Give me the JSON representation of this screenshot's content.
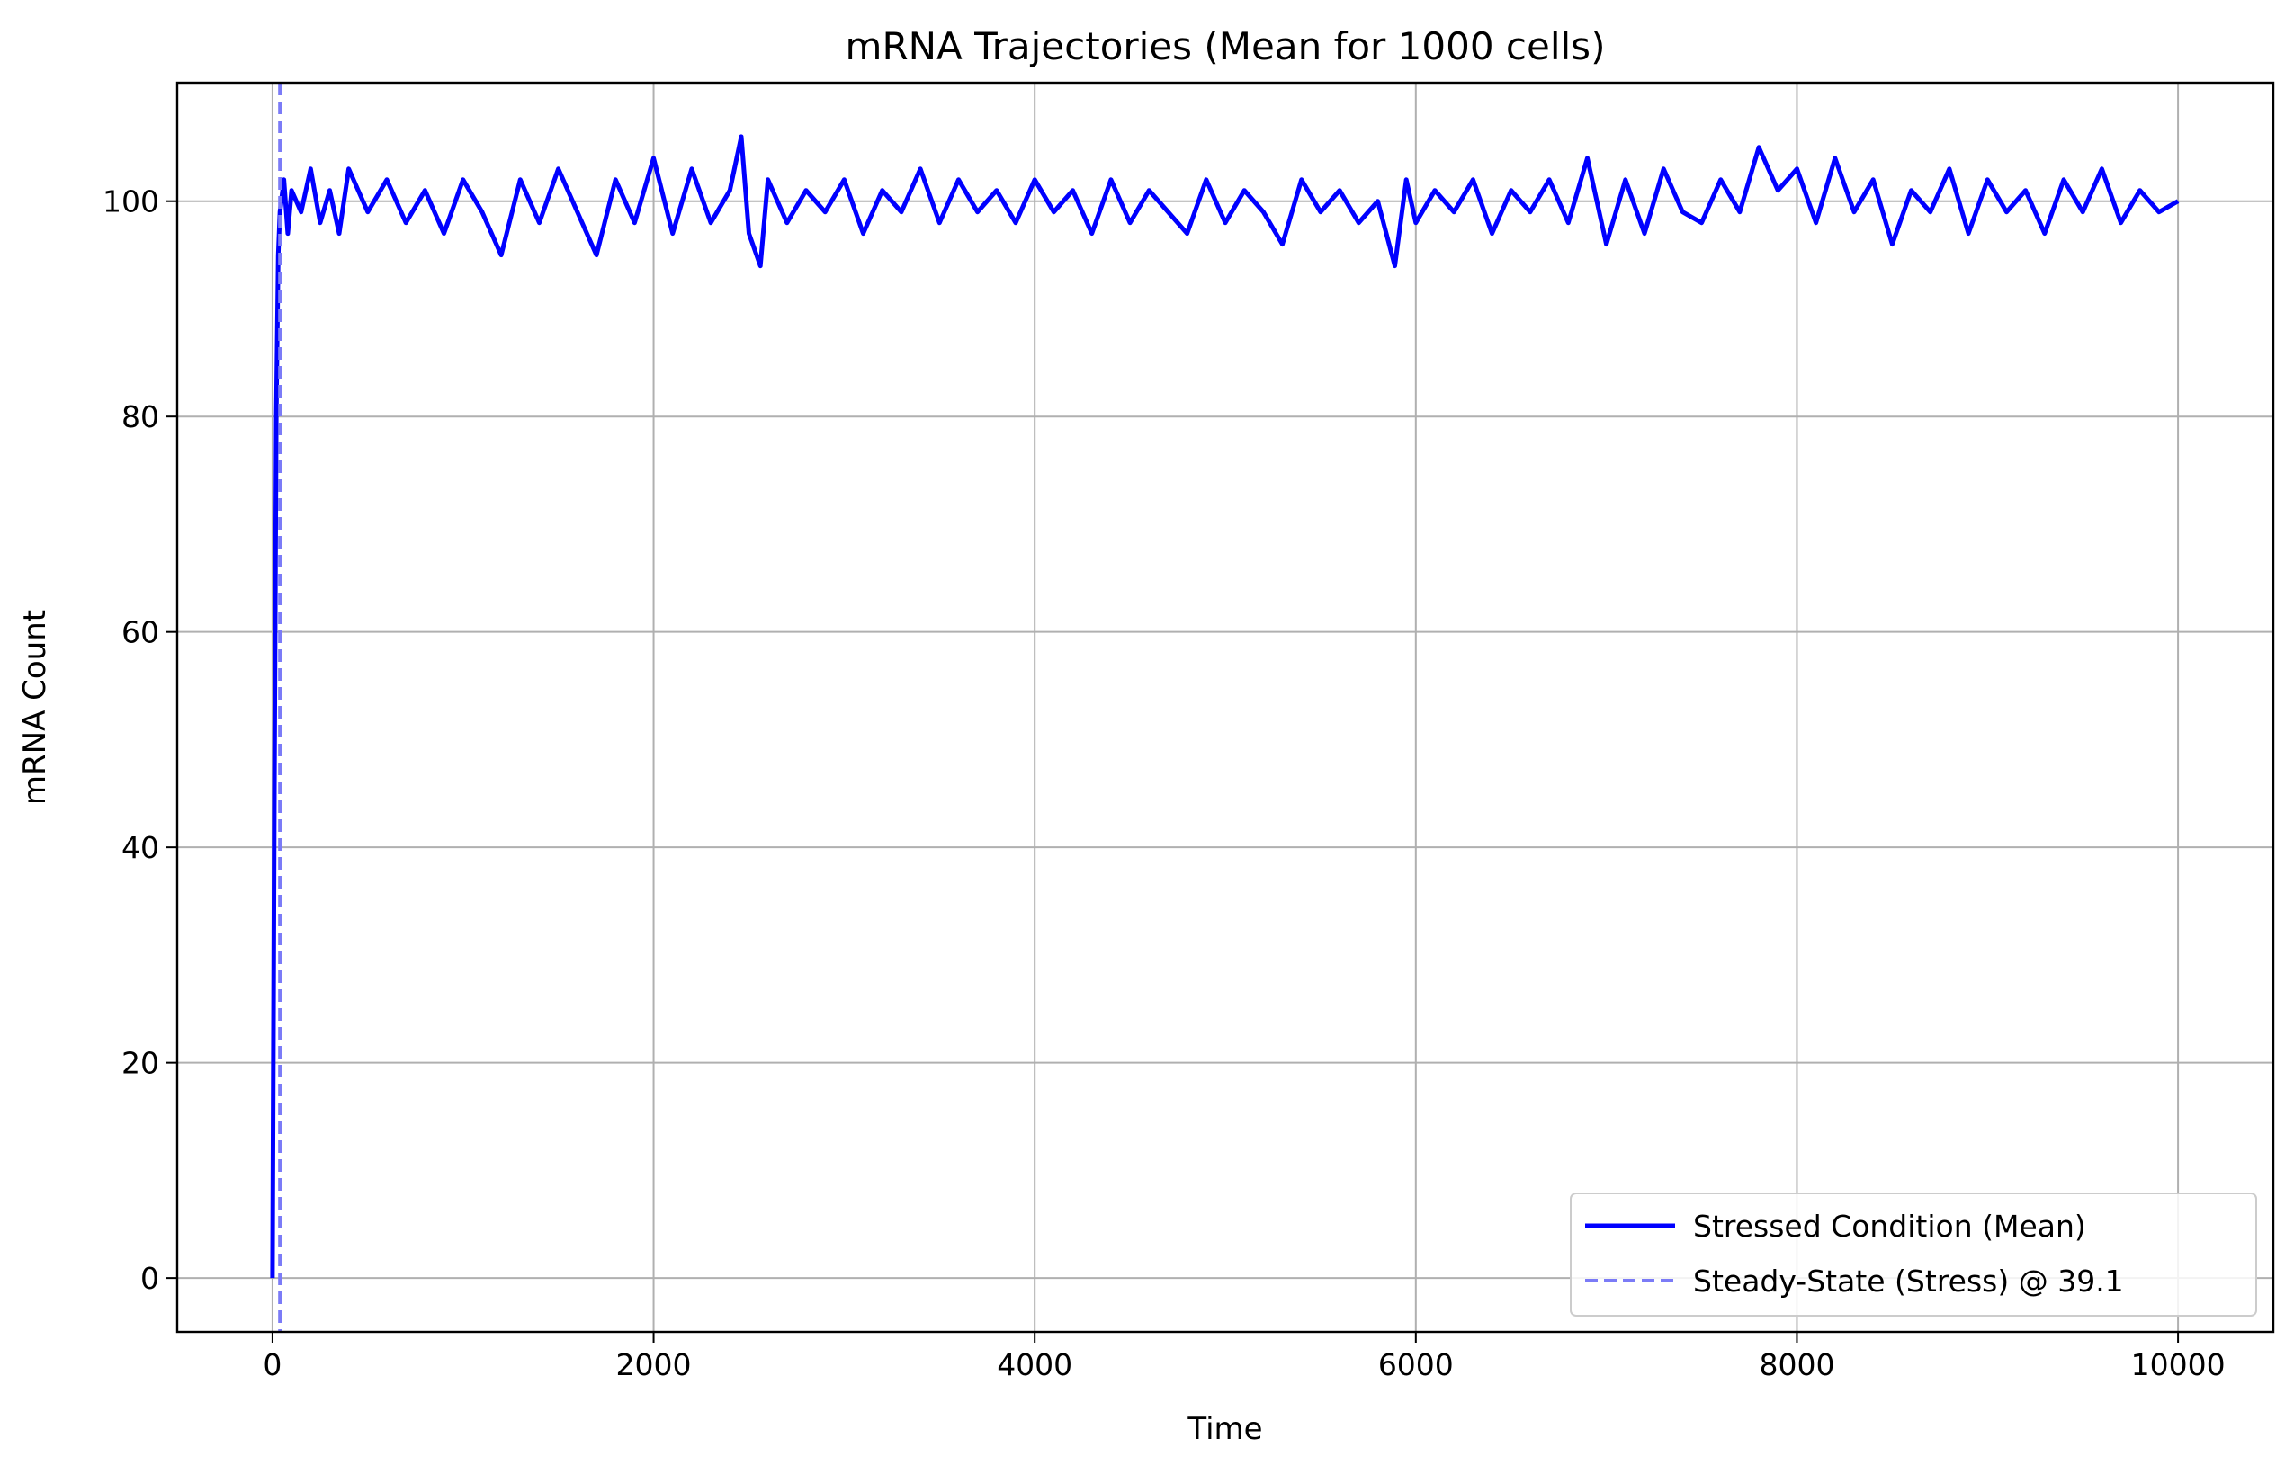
{
  "chart_data": {
    "type": "line",
    "title": "mRNA Trajectories (Mean for 1000 cells)",
    "xlabel": "Time",
    "ylabel": "mRNA Count",
    "xlim": [
      -500,
      10500
    ],
    "ylim": [
      -5,
      111
    ],
    "x_ticks": [
      0,
      2000,
      4000,
      6000,
      8000,
      10000
    ],
    "x_tick_labels": [
      "0",
      "2000",
      "4000",
      "6000",
      "8000",
      "10000"
    ],
    "y_ticks": [
      0,
      20,
      40,
      60,
      80,
      100
    ],
    "y_tick_labels": [
      "0",
      "20",
      "40",
      "60",
      "80",
      "100"
    ],
    "grid": true,
    "legend_position": "lower-right",
    "series": [
      {
        "name": "Stressed Condition (Mean)",
        "color": "#0000ff",
        "style": "solid",
        "x": [
          0,
          10,
          20,
          30,
          39,
          60,
          80,
          100,
          150,
          200,
          250,
          300,
          350,
          400,
          500,
          600,
          700,
          800,
          900,
          1000,
          1100,
          1200,
          1300,
          1400,
          1500,
          1600,
          1700,
          1800,
          1900,
          2000,
          2100,
          2200,
          2300,
          2400,
          2460,
          2500,
          2560,
          2600,
          2700,
          2800,
          2900,
          3000,
          3100,
          3200,
          3300,
          3400,
          3500,
          3600,
          3700,
          3800,
          3900,
          4000,
          4100,
          4200,
          4300,
          4400,
          4500,
          4600,
          4700,
          4800,
          4900,
          5000,
          5100,
          5200,
          5300,
          5400,
          5500,
          5600,
          5700,
          5800,
          5890,
          5950,
          6000,
          6100,
          6200,
          6300,
          6400,
          6500,
          6600,
          6700,
          6800,
          6900,
          7000,
          7100,
          7200,
          7300,
          7400,
          7500,
          7600,
          7700,
          7800,
          7900,
          8000,
          8100,
          8200,
          8300,
          8400,
          8500,
          8600,
          8700,
          8800,
          8900,
          9000,
          9100,
          9200,
          9300,
          9400,
          9500,
          9600,
          9700,
          9800,
          9900,
          10000
        ],
        "values": [
          0,
          45,
          80,
          95,
          99,
          102,
          97,
          101,
          99,
          103,
          98,
          101,
          97,
          103,
          99,
          102,
          98,
          101,
          97,
          102,
          99,
          95,
          102,
          98,
          103,
          99,
          95,
          102,
          98,
          104,
          97,
          103,
          98,
          101,
          106,
          97,
          94,
          102,
          98,
          101,
          99,
          102,
          97,
          101,
          99,
          103,
          98,
          102,
          99,
          101,
          98,
          102,
          99,
          101,
          97,
          102,
          98,
          101,
          99,
          97,
          102,
          98,
          101,
          99,
          96,
          102,
          99,
          101,
          98,
          100,
          94,
          102,
          98,
          101,
          99,
          102,
          97,
          101,
          99,
          102,
          98,
          104,
          96,
          102,
          97,
          103,
          99,
          98,
          102,
          99,
          105,
          101,
          103,
          98,
          104,
          99,
          102,
          96,
          101,
          99,
          103,
          97,
          102,
          99,
          101,
          97,
          102,
          99,
          103,
          98,
          101,
          99,
          100
        ]
      },
      {
        "name": "Steady-State (Stress) @ 39.1",
        "color": "#7b7bf7",
        "style": "dashed",
        "vline_x": 39.1
      }
    ]
  }
}
